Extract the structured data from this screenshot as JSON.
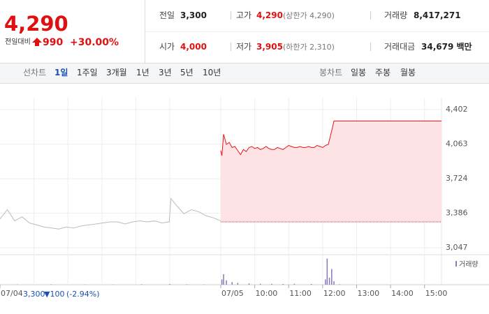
{
  "header": {
    "price": "4,290",
    "change_label": "전일대비",
    "change": "990",
    "change_rate": "+30.00%",
    "stats": [
      {
        "label": "전일",
        "value": "3,300"
      },
      {
        "label": "고가",
        "value": "4,290",
        "note": "(상한가 4,290)"
      },
      {
        "label": "거래량",
        "value": "8,417,271"
      },
      {
        "label": "시가",
        "value": "4,000"
      },
      {
        "label": "저가",
        "value": "3,905",
        "note": "(하한가 2,310)"
      },
      {
        "label": "거래대금",
        "value": "34,679 백만"
      }
    ]
  },
  "tabs": {
    "line_label": "선차트",
    "line_periods": [
      "1일",
      "1주일",
      "3개월",
      "1년",
      "3년",
      "5년",
      "10년"
    ],
    "selected": 0,
    "candle_label": "봉차트",
    "candle_periods": [
      "일봉",
      "주봉",
      "월봉"
    ]
  },
  "footer": {
    "prev_close": "3,300",
    "prev_change": "▼100",
    "prev_rate": "(-2.94%)"
  },
  "chart_data": {
    "type": "line",
    "xlim": [
      0,
      780
    ],
    "ylim": [
      3047,
      4402
    ],
    "yticks": [
      {
        "value": 4402,
        "label": "4,402"
      },
      {
        "value": 4063,
        "label": "4,063"
      },
      {
        "value": 3724,
        "label": "3,724"
      },
      {
        "value": 3386,
        "label": "3,386"
      },
      {
        "value": 3047,
        "label": "3,047"
      }
    ],
    "xticks": [
      {
        "value": 0,
        "label": "07/04"
      },
      {
        "value": 390,
        "label": "07/05"
      },
      {
        "value": 450,
        "label": "10:00"
      },
      {
        "value": 510,
        "label": "11:00"
      },
      {
        "value": 570,
        "label": "12:00"
      },
      {
        "value": 630,
        "label": "13:00"
      },
      {
        "value": 690,
        "label": "14:00"
      },
      {
        "value": 750,
        "label": "15:00"
      }
    ],
    "xgrid": [
      60,
      120,
      180,
      240,
      300,
      390,
      450,
      510,
      570,
      630,
      690,
      750
    ],
    "reference": 3300,
    "reference_color": "#c03030",
    "fill": "#fde3e5",
    "series": [
      {
        "color": "#bbbbbb",
        "x": [
          0,
          13,
          26,
          39,
          52,
          65,
          78,
          91,
          104,
          117,
          130,
          143,
          156,
          169,
          182,
          195,
          208,
          221,
          234,
          247,
          260,
          273,
          286,
          299,
          302,
          312,
          325,
          338,
          351,
          364,
          377,
          390
        ],
        "values": [
          3330,
          3420,
          3310,
          3350,
          3290,
          3270,
          3250,
          3240,
          3230,
          3250,
          3240,
          3260,
          3270,
          3280,
          3290,
          3300,
          3300,
          3280,
          3300,
          3310,
          3300,
          3310,
          3290,
          3300,
          3530,
          3460,
          3380,
          3420,
          3400,
          3360,
          3340,
          3310
        ]
      },
      {
        "color": "#ee1111",
        "x": [
          390,
          392,
          395,
          400,
          405,
          410,
          415,
          420,
          425,
          430,
          435,
          440,
          445,
          450,
          455,
          460,
          465,
          470,
          475,
          480,
          485,
          490,
          495,
          500,
          505,
          510,
          515,
          520,
          525,
          530,
          535,
          540,
          545,
          550,
          555,
          560,
          565,
          570,
          575,
          580,
          585,
          590,
          780
        ],
        "values": [
          4000,
          3950,
          4160,
          4060,
          4080,
          4030,
          4040,
          4000,
          3960,
          4010,
          3990,
          4030,
          4040,
          4020,
          4030,
          4010,
          4020,
          4040,
          4020,
          4010,
          4010,
          4030,
          4020,
          4010,
          4030,
          4050,
          4040,
          4030,
          4030,
          4040,
          4030,
          4030,
          4040,
          4030,
          4030,
          4050,
          4040,
          4030,
          4050,
          4060,
          4170,
          4290,
          4290
        ]
      }
    ],
    "volume": {
      "label": "거래량",
      "color": "#8a78b8",
      "ylim": [
        0,
        320000
      ],
      "x": [
        30,
        90,
        150,
        200,
        250,
        300,
        330,
        360,
        392,
        395,
        400,
        410,
        420,
        440,
        460,
        480,
        500,
        520,
        550,
        575,
        578,
        582,
        586,
        590,
        600
      ],
      "values": [
        3000,
        4000,
        3000,
        3000,
        5000,
        8000,
        4000,
        3000,
        60000,
        120000,
        50000,
        30000,
        20000,
        15000,
        10000,
        10000,
        8000,
        10000,
        8000,
        60000,
        300000,
        80000,
        180000,
        40000,
        5000
      ]
    }
  }
}
